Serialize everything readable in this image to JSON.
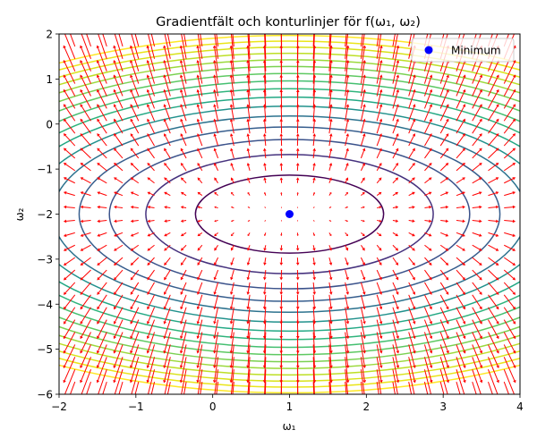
{
  "chart_data": {
    "type": "contour+quiver",
    "title": "Gradientfält och konturlinjer för f(ω₁, ω₂)",
    "xlabel": "ω₁",
    "ylabel": "ω₂",
    "xlim": [
      -2,
      4
    ],
    "ylim": [
      -6,
      2
    ],
    "xticks": [
      -2,
      -1,
      0,
      1,
      2,
      3,
      4
    ],
    "yticks": [
      -6,
      -5,
      -4,
      -3,
      -2,
      -1,
      0,
      1,
      2
    ],
    "function": {
      "center": [
        1,
        -2
      ],
      "a": 1,
      "b": 2
    },
    "contour_levels": [
      1.5,
      3.5,
      5.5,
      7.5,
      9.5,
      11.5,
      13.5,
      15.5,
      17.5,
      19.5,
      21.5,
      23.5,
      25.5,
      27.5,
      29.5,
      31.5
    ],
    "contour_colors": [
      "#440154",
      "#46327e",
      "#3b528b",
      "#365d8d",
      "#2c728e",
      "#21918c",
      "#22a884",
      "#2fb47c",
      "#44bf70",
      "#5ec962",
      "#7ad151",
      "#9bd93c",
      "#bddf26",
      "#d8e219",
      "#eae51a",
      "#fde725"
    ],
    "quiver": {
      "nx": 30,
      "ny": 30,
      "color": "#ff0000"
    },
    "minimum": {
      "x": 1,
      "y": -2,
      "color": "#0000ff"
    },
    "legend": {
      "location": "top-right",
      "entries": [
        {
          "label": "Minimum"
        }
      ]
    },
    "grid": false
  }
}
